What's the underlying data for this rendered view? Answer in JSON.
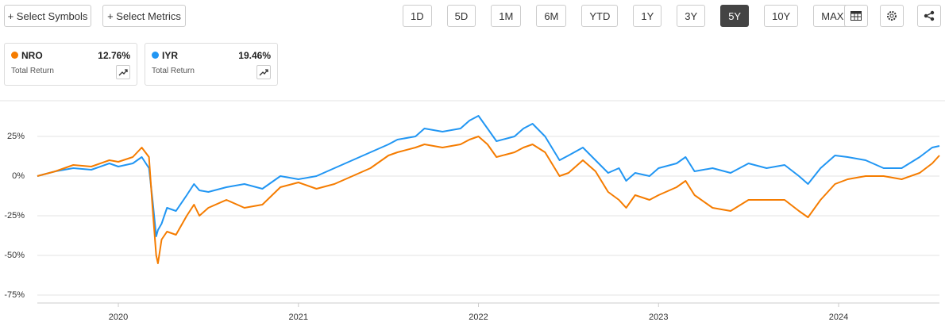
{
  "toolbar": {
    "buttons": [
      "+ Select Symbols",
      "+ Select Metrics"
    ],
    "ranges": [
      "1D",
      "5D",
      "1M",
      "6M",
      "YTD",
      "1Y",
      "3Y",
      "5Y",
      "10Y",
      "MAX"
    ],
    "selected_range": "5Y"
  },
  "cards": [
    {
      "symbol": "NRO",
      "value": "12.76%",
      "label": "Total Return",
      "color": "#f57c00"
    },
    {
      "symbol": "IYR",
      "value": "19.46%",
      "label": "Total Return",
      "color": "#2196f3"
    }
  ],
  "chart_data": {
    "type": "line",
    "x": [
      2019.55,
      2019.65,
      2019.75,
      2019.85,
      2019.95,
      2020.0,
      2020.08,
      2020.13,
      2020.17,
      2020.19,
      2020.21,
      2020.22,
      2020.24,
      2020.27,
      2020.32,
      2020.38,
      2020.42,
      2020.45,
      2020.5,
      2020.6,
      2020.7,
      2020.8,
      2020.9,
      2021.0,
      2021.1,
      2021.2,
      2021.3,
      2021.4,
      2021.5,
      2021.55,
      2021.65,
      2021.7,
      2021.8,
      2021.9,
      2021.95,
      2022.0,
      2022.05,
      2022.1,
      2022.2,
      2022.25,
      2022.3,
      2022.37,
      2022.45,
      2022.5,
      2022.58,
      2022.65,
      2022.72,
      2022.78,
      2022.82,
      2022.87,
      2022.95,
      2023.0,
      2023.1,
      2023.15,
      2023.2,
      2023.3,
      2023.4,
      2023.5,
      2023.6,
      2023.7,
      2023.78,
      2023.83,
      2023.9,
      2023.98,
      2024.05,
      2024.15,
      2024.25,
      2024.35,
      2024.45,
      2024.52,
      2024.56
    ],
    "series": [
      {
        "name": "IYR",
        "color": "#2196f3",
        "values": [
          0,
          3,
          5,
          4,
          8,
          6,
          8,
          12,
          5,
          -15,
          -38,
          -34,
          -30,
          -20,
          -22,
          -12,
          -5,
          -9,
          -10,
          -7,
          -5,
          -8,
          0,
          -2,
          0,
          5,
          10,
          15,
          20,
          23,
          25,
          30,
          28,
          30,
          35,
          38,
          30,
          22,
          25,
          30,
          33,
          25,
          10,
          13,
          18,
          10,
          2,
          5,
          -3,
          2,
          0,
          5,
          8,
          12,
          3,
          5,
          2,
          8,
          5,
          7,
          0,
          -5,
          5,
          13,
          12,
          10,
          5,
          5,
          12,
          18,
          19
        ]
      },
      {
        "name": "NRO",
        "color": "#f57c00",
        "values": [
          0,
          3,
          7,
          6,
          10,
          9,
          12,
          18,
          12,
          -20,
          -50,
          -55,
          -40,
          -35,
          -37,
          -25,
          -18,
          -25,
          -20,
          -15,
          -20,
          -18,
          -7,
          -4,
          -8,
          -5,
          0,
          5,
          13,
          15,
          18,
          20,
          18,
          20,
          23,
          25,
          20,
          12,
          15,
          18,
          20,
          15,
          0,
          2,
          10,
          3,
          -10,
          -15,
          -20,
          -12,
          -15,
          -12,
          -7,
          -3,
          -12,
          -20,
          -22,
          -15,
          -15,
          -15,
          -22,
          -26,
          -15,
          -5,
          -2,
          0,
          0,
          -2,
          2,
          8,
          13
        ]
      }
    ],
    "xlim": [
      2019.55,
      2024.56
    ],
    "xticks": [
      2020,
      2021,
      2022,
      2023,
      2024
    ],
    "ylim": [
      -80,
      47.5
    ],
    "yticks": [
      {
        "value": 25,
        "label": "25%"
      },
      {
        "value": 0,
        "label": "0%"
      },
      {
        "value": -25,
        "label": "-25%"
      },
      {
        "value": -50,
        "label": "-50%"
      },
      {
        "value": -75,
        "label": "-75%"
      }
    ],
    "grid": true
  }
}
